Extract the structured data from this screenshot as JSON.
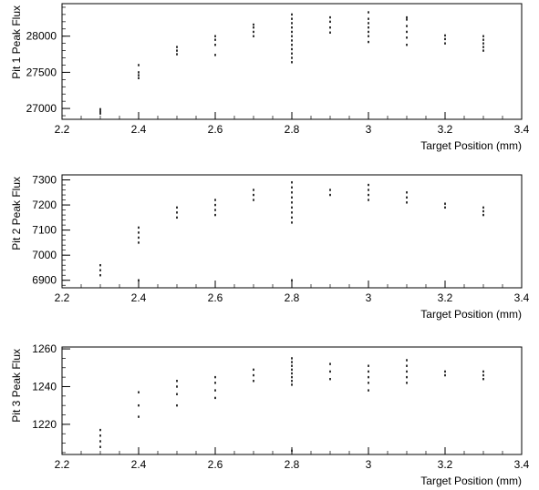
{
  "chart_data": [
    {
      "type": "scatter",
      "title": "",
      "xlabel": "Target Position (mm)",
      "ylabel": "Pit 1 Peak Flux",
      "xlim": [
        2.2,
        3.4
      ],
      "ylim": [
        26850,
        28450
      ],
      "xticks": [
        "2.2",
        "2.4",
        "2.6",
        "2.8",
        "3",
        "3.2",
        "3.4"
      ],
      "yticks": [
        "27000",
        "27500",
        "28000"
      ],
      "grid": false,
      "points": [
        {
          "x": 2.3,
          "y": 26960
        },
        {
          "x": 2.3,
          "y": 26930
        },
        {
          "x": 2.3,
          "y": 26990
        },
        {
          "x": 2.4,
          "y": 27420
        },
        {
          "x": 2.4,
          "y": 27460
        },
        {
          "x": 2.4,
          "y": 27500
        },
        {
          "x": 2.4,
          "y": 27600
        },
        {
          "x": 2.5,
          "y": 27750
        },
        {
          "x": 2.5,
          "y": 27800
        },
        {
          "x": 2.5,
          "y": 27850
        },
        {
          "x": 2.6,
          "y": 27740
        },
        {
          "x": 2.6,
          "y": 27880
        },
        {
          "x": 2.6,
          "y": 27950
        },
        {
          "x": 2.6,
          "y": 28000
        },
        {
          "x": 2.7,
          "y": 28000
        },
        {
          "x": 2.7,
          "y": 28060
        },
        {
          "x": 2.7,
          "y": 28120
        },
        {
          "x": 2.7,
          "y": 28160
        },
        {
          "x": 2.8,
          "y": 27640
        },
        {
          "x": 2.8,
          "y": 27700
        },
        {
          "x": 2.8,
          "y": 27760
        },
        {
          "x": 2.8,
          "y": 27820
        },
        {
          "x": 2.8,
          "y": 27880
        },
        {
          "x": 2.8,
          "y": 27940
        },
        {
          "x": 2.8,
          "y": 28000
        },
        {
          "x": 2.8,
          "y": 28060
        },
        {
          "x": 2.8,
          "y": 28120
        },
        {
          "x": 2.8,
          "y": 28180
        },
        {
          "x": 2.8,
          "y": 28240
        },
        {
          "x": 2.8,
          "y": 28300
        },
        {
          "x": 2.9,
          "y": 28050
        },
        {
          "x": 2.9,
          "y": 28120
        },
        {
          "x": 2.9,
          "y": 28200
        },
        {
          "x": 2.9,
          "y": 28260
        },
        {
          "x": 3.0,
          "y": 27920
        },
        {
          "x": 3.0,
          "y": 28000
        },
        {
          "x": 3.0,
          "y": 28060
        },
        {
          "x": 3.0,
          "y": 28120
        },
        {
          "x": 3.0,
          "y": 28180
        },
        {
          "x": 3.0,
          "y": 28240
        },
        {
          "x": 3.0,
          "y": 28330
        },
        {
          "x": 3.1,
          "y": 27880
        },
        {
          "x": 3.1,
          "y": 27980
        },
        {
          "x": 3.1,
          "y": 28060
        },
        {
          "x": 3.1,
          "y": 28140
        },
        {
          "x": 3.1,
          "y": 28230
        },
        {
          "x": 3.1,
          "y": 28260
        },
        {
          "x": 3.2,
          "y": 27900
        },
        {
          "x": 3.2,
          "y": 27960
        },
        {
          "x": 3.2,
          "y": 28010
        },
        {
          "x": 3.3,
          "y": 27800
        },
        {
          "x": 3.3,
          "y": 27850
        },
        {
          "x": 3.3,
          "y": 27900
        },
        {
          "x": 3.3,
          "y": 27950
        },
        {
          "x": 3.3,
          "y": 28000
        }
      ]
    },
    {
      "type": "scatter",
      "title": "",
      "xlabel": "Target Position (mm)",
      "ylabel": "Pit 2 Peak Flux",
      "xlim": [
        2.2,
        3.4
      ],
      "ylim": [
        6870,
        7320
      ],
      "xticks": [
        "2.2",
        "2.4",
        "2.6",
        "2.8",
        "3",
        "3.2",
        "3.4"
      ],
      "yticks": [
        "6900",
        "7000",
        "7100",
        "7200",
        "7300"
      ],
      "grid": false,
      "points": [
        {
          "x": 2.3,
          "y": 6920
        },
        {
          "x": 2.3,
          "y": 6940
        },
        {
          "x": 2.3,
          "y": 6960
        },
        {
          "x": 2.4,
          "y": 7050
        },
        {
          "x": 2.4,
          "y": 7070
        },
        {
          "x": 2.4,
          "y": 7090
        },
        {
          "x": 2.4,
          "y": 7110
        },
        {
          "x": 2.4,
          "y": 6900
        },
        {
          "x": 2.5,
          "y": 7150
        },
        {
          "x": 2.5,
          "y": 7170
        },
        {
          "x": 2.5,
          "y": 7190
        },
        {
          "x": 2.6,
          "y": 7160
        },
        {
          "x": 2.6,
          "y": 7180
        },
        {
          "x": 2.6,
          "y": 7200
        },
        {
          "x": 2.6,
          "y": 7220
        },
        {
          "x": 2.7,
          "y": 7220
        },
        {
          "x": 2.7,
          "y": 7240
        },
        {
          "x": 2.7,
          "y": 7260
        },
        {
          "x": 2.8,
          "y": 7130
        },
        {
          "x": 2.8,
          "y": 7150
        },
        {
          "x": 2.8,
          "y": 7170
        },
        {
          "x": 2.8,
          "y": 7190
        },
        {
          "x": 2.8,
          "y": 7210
        },
        {
          "x": 2.8,
          "y": 7230
        },
        {
          "x": 2.8,
          "y": 7250
        },
        {
          "x": 2.8,
          "y": 7270
        },
        {
          "x": 2.8,
          "y": 7290
        },
        {
          "x": 2.8,
          "y": 6900
        },
        {
          "x": 2.9,
          "y": 7240
        },
        {
          "x": 2.9,
          "y": 7260
        },
        {
          "x": 3.0,
          "y": 7220
        },
        {
          "x": 3.0,
          "y": 7240
        },
        {
          "x": 3.0,
          "y": 7260
        },
        {
          "x": 3.0,
          "y": 7280
        },
        {
          "x": 3.1,
          "y": 7210
        },
        {
          "x": 3.1,
          "y": 7230
        },
        {
          "x": 3.1,
          "y": 7250
        },
        {
          "x": 3.2,
          "y": 7190
        },
        {
          "x": 3.2,
          "y": 7205
        },
        {
          "x": 3.3,
          "y": 7160
        },
        {
          "x": 3.3,
          "y": 7175
        },
        {
          "x": 3.3,
          "y": 7190
        }
      ]
    },
    {
      "type": "scatter",
      "title": "",
      "xlabel": "Target Position (mm)",
      "ylabel": "Pit 3 Peak Flux",
      "xlim": [
        2.2,
        3.4
      ],
      "ylim": [
        1204,
        1261
      ],
      "xticks": [
        "2.2",
        "2.4",
        "2.6",
        "2.8",
        "3",
        "3.2",
        "3.4"
      ],
      "yticks": [
        "1220",
        "1240",
        "1260"
      ],
      "grid": false,
      "points": [
        {
          "x": 2.3,
          "y": 1208
        },
        {
          "x": 2.3,
          "y": 1211
        },
        {
          "x": 2.3,
          "y": 1214
        },
        {
          "x": 2.3,
          "y": 1217
        },
        {
          "x": 2.4,
          "y": 1224
        },
        {
          "x": 2.4,
          "y": 1230
        },
        {
          "x": 2.4,
          "y": 1237
        },
        {
          "x": 2.5,
          "y": 1230
        },
        {
          "x": 2.5,
          "y": 1236
        },
        {
          "x": 2.5,
          "y": 1240
        },
        {
          "x": 2.5,
          "y": 1243
        },
        {
          "x": 2.6,
          "y": 1234
        },
        {
          "x": 2.6,
          "y": 1238
        },
        {
          "x": 2.6,
          "y": 1242
        },
        {
          "x": 2.6,
          "y": 1245
        },
        {
          "x": 2.7,
          "y": 1243
        },
        {
          "x": 2.7,
          "y": 1246
        },
        {
          "x": 2.7,
          "y": 1249
        },
        {
          "x": 2.8,
          "y": 1241
        },
        {
          "x": 2.8,
          "y": 1243
        },
        {
          "x": 2.8,
          "y": 1245
        },
        {
          "x": 2.8,
          "y": 1247
        },
        {
          "x": 2.8,
          "y": 1249
        },
        {
          "x": 2.8,
          "y": 1251
        },
        {
          "x": 2.8,
          "y": 1253
        },
        {
          "x": 2.8,
          "y": 1255
        },
        {
          "x": 2.8,
          "y": 1206
        },
        {
          "x": 2.9,
          "y": 1244
        },
        {
          "x": 2.9,
          "y": 1248
        },
        {
          "x": 2.9,
          "y": 1252
        },
        {
          "x": 3.0,
          "y": 1238
        },
        {
          "x": 3.0,
          "y": 1242
        },
        {
          "x": 3.0,
          "y": 1245
        },
        {
          "x": 3.0,
          "y": 1248
        },
        {
          "x": 3.0,
          "y": 1251
        },
        {
          "x": 3.1,
          "y": 1242
        },
        {
          "x": 3.1,
          "y": 1245
        },
        {
          "x": 3.1,
          "y": 1248
        },
        {
          "x": 3.1,
          "y": 1251
        },
        {
          "x": 3.1,
          "y": 1254
        },
        {
          "x": 3.2,
          "y": 1246
        },
        {
          "x": 3.2,
          "y": 1248
        },
        {
          "x": 3.3,
          "y": 1244
        },
        {
          "x": 3.3,
          "y": 1246
        },
        {
          "x": 3.3,
          "y": 1248
        }
      ]
    }
  ]
}
